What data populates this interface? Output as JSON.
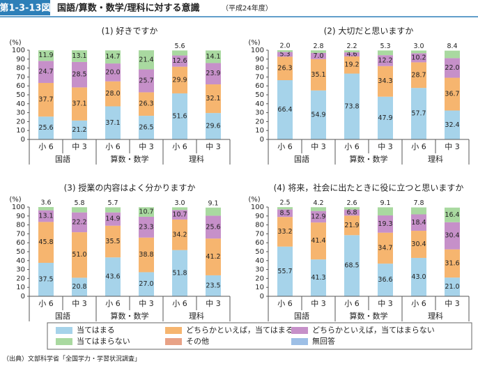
{
  "header": {
    "figure_number": "第1-3-13図",
    "title": "国語/算数・数学/理科に対する意識",
    "subtitle": "（平成24年度）"
  },
  "legend": [
    {
      "name": "当てはまる",
      "color": "#a6d3ea"
    },
    {
      "name": "どちらかといえば，当てはまる",
      "color": "#f6b56f"
    },
    {
      "name": "どちらかといえば，当てはまらない",
      "color": "#c690c9"
    },
    {
      "name": "当てはまらない",
      "color": "#a9d9a0"
    },
    {
      "name": "その他",
      "color": "#e8a286"
    },
    {
      "name": "無回答",
      "color": "#9dbfe6"
    }
  ],
  "source": "（出典）文部科学省「全国学力・学習状況調査」",
  "chart_data": [
    {
      "type": "bar",
      "stacked": true,
      "title": "(1) 好きですか",
      "y_label": "(%)",
      "categories": [
        "小 6",
        "中 3",
        "小 6",
        "中 3",
        "小 6",
        "中 3"
      ],
      "groups": [
        "国語",
        "算数・数学",
        "理科"
      ],
      "ylim": [
        0,
        100
      ],
      "yticks": [
        0,
        10,
        20,
        30,
        40,
        50,
        60,
        70,
        80,
        90,
        100
      ],
      "series": [
        {
          "values": [
            25.6,
            21.2,
            37.1,
            26.5,
            51.6,
            29.6
          ]
        },
        {
          "values": [
            37.7,
            37.1,
            28.0,
            26.3,
            29.9,
            32.1
          ],
          "value_labels": [
            "37.7",
            "37.1",
            "28.0",
            "26.3",
            "29.9",
            "32.1"
          ]
        },
        {
          "values": [
            24.7,
            28.5,
            20.0,
            25.7,
            12.6,
            23.9
          ],
          "value_labels": [
            "24.7",
            "28.5",
            "20.0",
            "25.7",
            "12.6",
            "23.9"
          ]
        },
        {
          "values": [
            11.9,
            13.1,
            14.7,
            21.4,
            5.6,
            14.1
          ]
        }
      ]
    },
    {
      "type": "bar",
      "stacked": true,
      "title": "(2) 大切だと思いますか",
      "y_label": "(%)",
      "categories": [
        "小 6",
        "中 3",
        "小 6",
        "中 3",
        "小 6",
        "中 3"
      ],
      "groups": [
        "国語",
        "算数・数学",
        "理科"
      ],
      "ylim": [
        0,
        100
      ],
      "yticks": [
        0,
        10,
        20,
        30,
        40,
        50,
        60,
        70,
        80,
        90,
        100
      ],
      "series": [
        {
          "values": [
            66.4,
            54.9,
            73.8,
            47.9,
            57.7,
            32.4
          ]
        },
        {
          "values": [
            26.3,
            35.1,
            19.2,
            34.3,
            28.7,
            36.7
          ]
        },
        {
          "values": [
            5.3,
            7.0,
            4.6,
            12.2,
            10.2,
            22.0
          ],
          "value_labels": [
            "5.3",
            "7.0",
            "4.6",
            "12.2",
            "10.2",
            "22.0"
          ]
        },
        {
          "values": [
            2.0,
            2.8,
            2.2,
            5.3,
            3.0,
            8.4
          ],
          "value_labels": [
            "2.0",
            "2.8",
            "2.2",
            "5.3",
            "3.0",
            "8.4"
          ]
        }
      ]
    },
    {
      "type": "bar",
      "stacked": true,
      "title": "(3) 授業の内容はよく分かりますか",
      "y_label": "(%)",
      "categories": [
        "小 6",
        "中 3",
        "小 6",
        "中 3",
        "小 6",
        "中 3"
      ],
      "groups": [
        "国語",
        "算数・数学",
        "理科"
      ],
      "ylim": [
        0,
        100
      ],
      "yticks": [
        0,
        10,
        20,
        30,
        40,
        50,
        60,
        70,
        80,
        90,
        100
      ],
      "series": [
        {
          "values": [
            37.5,
            20.8,
            43.6,
            27.0,
            51.8,
            23.5
          ],
          "value_labels": [
            "37.5",
            "20.8",
            "43.6",
            "27.0",
            "51.8",
            "23.5"
          ]
        },
        {
          "values": [
            45.8,
            51.0,
            35.5,
            38.8,
            34.2,
            41.2
          ],
          "value_labels": [
            "45.8",
            "51.0",
            "35.5",
            "38.8",
            "34.2",
            "41.2"
          ]
        },
        {
          "values": [
            13.1,
            22.2,
            14.9,
            23.3,
            10.7,
            25.6
          ]
        },
        {
          "values": [
            3.6,
            5.8,
            5.7,
            10.7,
            3.0,
            9.1
          ],
          "value_labels": [
            "3.6",
            "5.8",
            "5.7",
            "10.7",
            "3.0",
            "9.1"
          ]
        }
      ]
    },
    {
      "type": "bar",
      "stacked": true,
      "title": "(4) 将来，社会に出たときに役に立つと思いますか",
      "y_label": "(%)",
      "categories": [
        "小 6",
        "中 3",
        "小 6",
        "中 3",
        "小 6",
        "中 3"
      ],
      "groups": [
        "国語",
        "算数・数学",
        "理科"
      ],
      "ylim": [
        0,
        100
      ],
      "yticks": [
        0,
        10,
        20,
        30,
        40,
        50,
        60,
        70,
        80,
        90,
        100
      ],
      "series": [
        {
          "values": [
            55.7,
            41.3,
            68.5,
            36.6,
            43.0,
            21.0
          ],
          "value_labels": [
            "55.7",
            "41.3",
            "68.5",
            "36.6",
            "43.0",
            "21.0"
          ]
        },
        {
          "values": [
            33.2,
            41.4,
            21.9,
            34.7,
            30.4,
            31.6
          ]
        },
        {
          "values": [
            8.5,
            12.9,
            6.8,
            19.3,
            18.4,
            30.4
          ]
        },
        {
          "values": [
            2.5,
            4.2,
            2.6,
            9.1,
            7.8,
            16.4
          ]
        }
      ]
    }
  ]
}
